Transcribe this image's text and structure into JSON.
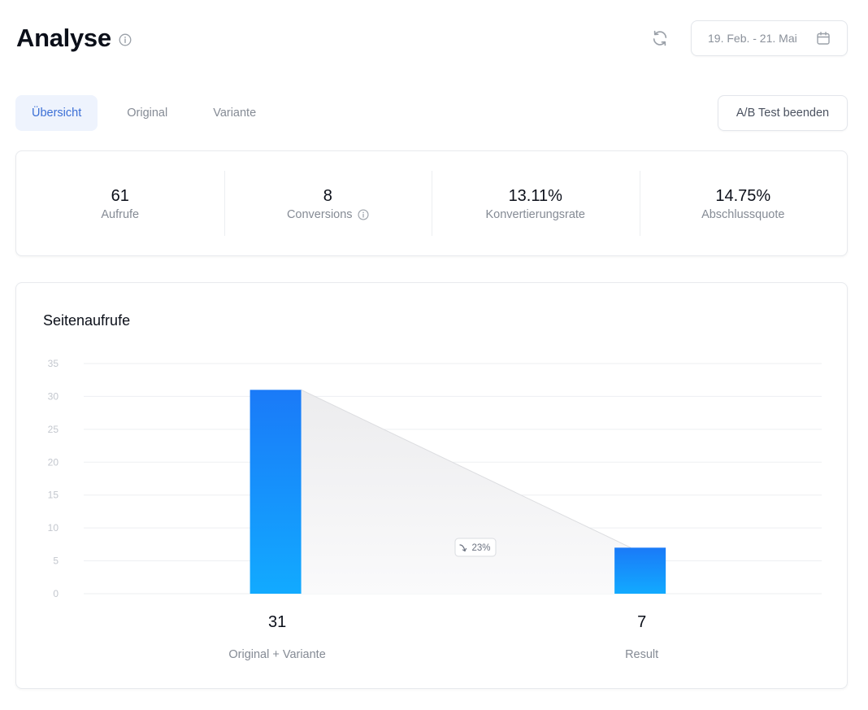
{
  "header": {
    "title": "Analyse",
    "date_range": "19. Feb. - 21. Mai"
  },
  "tabs": [
    {
      "label": "Übersicht",
      "active": true
    },
    {
      "label": "Original",
      "active": false
    },
    {
      "label": "Variante",
      "active": false
    }
  ],
  "actions": {
    "end_test_label": "A/B Test beenden"
  },
  "stats": [
    {
      "value": "61",
      "label": "Aufrufe",
      "info": false
    },
    {
      "value": "8",
      "label": "Conversions",
      "info": true
    },
    {
      "value": "13.11%",
      "label": "Konvertierungsrate",
      "info": false
    },
    {
      "value": "14.75%",
      "label": "Abschlussquote",
      "info": false
    }
  ],
  "icons": {
    "title_info": "info-icon",
    "refresh": "refresh-icon",
    "calendar": "calendar-icon",
    "conversions_info": "info-icon",
    "drop_arrow": "arrow-down-right-icon"
  },
  "colors": {
    "accent": "#3b6fd6",
    "active_tab_bg": "#eef3fd",
    "bar_top": "#1a7af8",
    "bar_bottom": "#12aaff"
  },
  "chart": {
    "title": "Seitenaufrufe",
    "drop_label": "23%"
  },
  "chart_data": {
    "type": "bar",
    "title": "Seitenaufrufe",
    "categories": [
      "Original + Variante",
      "Result"
    ],
    "values": [
      31,
      7
    ],
    "value_labels": [
      "31",
      "7"
    ],
    "ylim": [
      0,
      35
    ],
    "yticks": [
      0,
      5,
      10,
      15,
      20,
      25,
      30,
      35
    ],
    "grid": true,
    "annotation": "23%"
  }
}
